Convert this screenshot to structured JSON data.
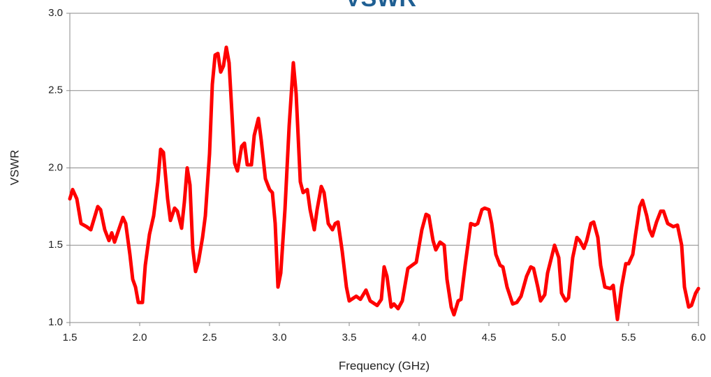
{
  "chart_data": {
    "type": "line",
    "title": "VSWR",
    "x_label": "Frequency (GHz)",
    "y_label": "VSWR",
    "xlim": [
      1.5,
      6.0
    ],
    "ylim": [
      1.0,
      3.0
    ],
    "xticks": [
      1.5,
      {
        "value": 2,
        "label": "2.0"
      },
      2.5,
      {
        "value": 3,
        "label": "3.0"
      },
      3.5,
      {
        "value": 4,
        "label": "4.0"
      },
      4.5,
      {
        "value": 5,
        "label": "5.0"
      },
      5.5,
      {
        "value": 6,
        "label": "6.0"
      }
    ],
    "yticks": [
      {
        "value": 1,
        "label": "1.0"
      },
      1.5,
      {
        "value": 2,
        "label": "2.0"
      },
      2.5,
      {
        "value": 3,
        "label": "3.0"
      }
    ],
    "grid": true,
    "series": [
      {
        "name": "VSWR",
        "color": "#ff0000",
        "x": [
          1.5,
          1.52,
          1.55,
          1.58,
          1.62,
          1.65,
          1.7,
          1.72,
          1.75,
          1.78,
          1.8,
          1.82,
          1.85,
          1.88,
          1.9,
          1.93,
          1.95,
          1.97,
          1.99,
          2.02,
          2.04,
          2.07,
          2.1,
          2.13,
          2.15,
          2.17,
          2.2,
          2.22,
          2.25,
          2.27,
          2.3,
          2.32,
          2.34,
          2.36,
          2.38,
          2.4,
          2.42,
          2.45,
          2.47,
          2.5,
          2.52,
          2.54,
          2.56,
          2.58,
          2.6,
          2.62,
          2.64,
          2.66,
          2.68,
          2.7,
          2.73,
          2.75,
          2.77,
          2.8,
          2.82,
          2.85,
          2.87,
          2.9,
          2.93,
          2.95,
          2.97,
          2.99,
          3.01,
          3.04,
          3.07,
          3.1,
          3.12,
          3.15,
          3.17,
          3.2,
          3.22,
          3.25,
          3.27,
          3.3,
          3.32,
          3.35,
          3.38,
          3.4,
          3.42,
          3.45,
          3.48,
          3.5,
          3.55,
          3.58,
          3.62,
          3.65,
          3.7,
          3.73,
          3.75,
          3.77,
          3.8,
          3.82,
          3.85,
          3.88,
          3.92,
          3.95,
          3.98,
          4.02,
          4.05,
          4.07,
          4.1,
          4.12,
          4.15,
          4.18,
          4.2,
          4.23,
          4.25,
          4.28,
          4.3,
          4.33,
          4.37,
          4.4,
          4.42,
          4.45,
          4.47,
          4.5,
          4.52,
          4.55,
          4.58,
          4.6,
          4.63,
          4.67,
          4.7,
          4.73,
          4.77,
          4.8,
          4.82,
          4.85,
          4.87,
          4.9,
          4.92,
          4.97,
          5.0,
          5.02,
          5.05,
          5.07,
          5.1,
          5.13,
          5.15,
          5.18,
          5.2,
          5.23,
          5.25,
          5.28,
          5.3,
          5.33,
          5.37,
          5.39,
          5.42,
          5.45,
          5.48,
          5.5,
          5.53,
          5.55,
          5.58,
          5.6,
          5.63,
          5.65,
          5.67,
          5.7,
          5.73,
          5.75,
          5.78,
          5.82,
          5.85,
          5.88,
          5.9,
          5.93,
          5.95,
          5.98,
          6.0
        ],
        "values": [
          1.8,
          1.86,
          1.8,
          1.64,
          1.62,
          1.6,
          1.75,
          1.73,
          1.6,
          1.53,
          1.58,
          1.52,
          1.6,
          1.68,
          1.64,
          1.44,
          1.28,
          1.23,
          1.13,
          1.13,
          1.37,
          1.57,
          1.69,
          1.91,
          2.12,
          2.1,
          1.8,
          1.66,
          1.74,
          1.72,
          1.61,
          1.78,
          2.0,
          1.89,
          1.48,
          1.33,
          1.39,
          1.55,
          1.69,
          2.09,
          2.54,
          2.73,
          2.74,
          2.62,
          2.66,
          2.78,
          2.68,
          2.36,
          2.03,
          1.98,
          2.14,
          2.16,
          2.02,
          2.02,
          2.21,
          2.32,
          2.18,
          1.93,
          1.86,
          1.84,
          1.64,
          1.23,
          1.32,
          1.73,
          2.27,
          2.68,
          2.48,
          1.91,
          1.84,
          1.86,
          1.73,
          1.6,
          1.73,
          1.88,
          1.84,
          1.64,
          1.6,
          1.64,
          1.65,
          1.46,
          1.23,
          1.14,
          1.17,
          1.15,
          1.21,
          1.14,
          1.11,
          1.15,
          1.36,
          1.3,
          1.1,
          1.12,
          1.09,
          1.14,
          1.35,
          1.37,
          1.39,
          1.6,
          1.7,
          1.69,
          1.53,
          1.47,
          1.52,
          1.5,
          1.28,
          1.1,
          1.05,
          1.14,
          1.15,
          1.37,
          1.64,
          1.63,
          1.64,
          1.73,
          1.74,
          1.73,
          1.64,
          1.44,
          1.37,
          1.36,
          1.23,
          1.12,
          1.13,
          1.17,
          1.3,
          1.36,
          1.35,
          1.23,
          1.14,
          1.18,
          1.32,
          1.5,
          1.42,
          1.19,
          1.14,
          1.16,
          1.42,
          1.55,
          1.53,
          1.48,
          1.53,
          1.64,
          1.65,
          1.55,
          1.37,
          1.23,
          1.22,
          1.24,
          1.02,
          1.23,
          1.38,
          1.38,
          1.44,
          1.57,
          1.75,
          1.79,
          1.69,
          1.6,
          1.56,
          1.65,
          1.72,
          1.72,
          1.64,
          1.62,
          1.63,
          1.5,
          1.23,
          1.1,
          1.11,
          1.19,
          1.22
        ]
      }
    ]
  }
}
